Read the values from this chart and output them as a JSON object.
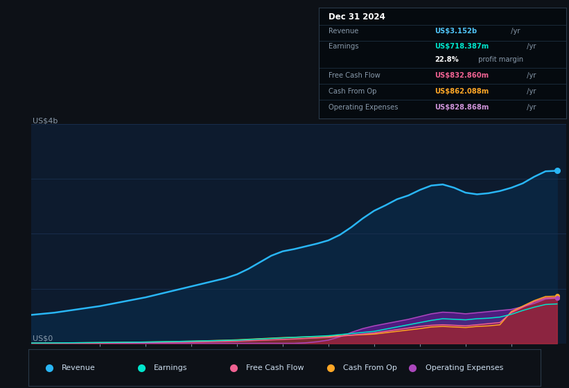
{
  "bg_color": "#0d1117",
  "plot_bg_color": "#0d1b2e",
  "grid_color": "#1a3050",
  "revenue_color": "#29b6f6",
  "earnings_color": "#00e5cc",
  "fcf_color": "#f06292",
  "cashop_color": "#ffa726",
  "opex_color": "#ab47bc",
  "legend_items": [
    {
      "label": "Revenue",
      "color": "#29b6f6"
    },
    {
      "label": "Earnings",
      "color": "#00e5cc"
    },
    {
      "label": "Free Cash Flow",
      "color": "#f06292"
    },
    {
      "label": "Cash From Op",
      "color": "#ffa726"
    },
    {
      "label": "Operating Expenses",
      "color": "#ab47bc"
    }
  ],
  "years": [
    2013.5,
    2013.75,
    2014.0,
    2014.25,
    2014.5,
    2014.75,
    2015.0,
    2015.25,
    2015.5,
    2015.75,
    2016.0,
    2016.25,
    2016.5,
    2016.75,
    2017.0,
    2017.25,
    2017.5,
    2017.75,
    2018.0,
    2018.25,
    2018.5,
    2018.75,
    2019.0,
    2019.25,
    2019.5,
    2019.75,
    2020.0,
    2020.25,
    2020.5,
    2020.75,
    2021.0,
    2021.25,
    2021.5,
    2021.75,
    2022.0,
    2022.25,
    2022.5,
    2022.75,
    2023.0,
    2023.25,
    2023.5,
    2023.75,
    2024.0,
    2024.25,
    2024.5,
    2024.75,
    2025.0
  ],
  "revenue": [
    0.52,
    0.54,
    0.56,
    0.59,
    0.62,
    0.65,
    0.68,
    0.72,
    0.76,
    0.8,
    0.84,
    0.89,
    0.94,
    0.99,
    1.04,
    1.09,
    1.14,
    1.19,
    1.26,
    1.36,
    1.48,
    1.6,
    1.68,
    1.72,
    1.77,
    1.82,
    1.88,
    1.98,
    2.12,
    2.28,
    2.42,
    2.52,
    2.63,
    2.7,
    2.8,
    2.88,
    2.9,
    2.84,
    2.75,
    2.72,
    2.74,
    2.78,
    2.84,
    2.92,
    3.04,
    3.14,
    3.15
  ],
  "earnings": [
    0.005,
    0.006,
    0.008,
    0.01,
    0.012,
    0.014,
    0.016,
    0.018,
    0.02,
    0.022,
    0.024,
    0.028,
    0.032,
    0.036,
    0.04,
    0.045,
    0.05,
    0.055,
    0.06,
    0.07,
    0.08,
    0.09,
    0.1,
    0.11,
    0.12,
    0.13,
    0.14,
    0.16,
    0.18,
    0.2,
    0.22,
    0.26,
    0.3,
    0.34,
    0.38,
    0.42,
    0.45,
    0.44,
    0.43,
    0.45,
    0.46,
    0.48,
    0.53,
    0.6,
    0.66,
    0.71,
    0.72
  ],
  "fcf": [
    0.002,
    0.003,
    0.004,
    0.005,
    0.006,
    0.007,
    0.008,
    0.01,
    0.012,
    0.014,
    0.016,
    0.018,
    0.02,
    0.022,
    0.025,
    0.028,
    0.032,
    0.036,
    0.04,
    0.048,
    0.056,
    0.064,
    0.072,
    0.08,
    0.09,
    0.1,
    0.11,
    0.13,
    0.15,
    0.17,
    0.19,
    0.22,
    0.25,
    0.28,
    0.31,
    0.33,
    0.34,
    0.33,
    0.32,
    0.34,
    0.36,
    0.38,
    0.56,
    0.66,
    0.76,
    0.83,
    0.833
  ],
  "cashop": [
    0.004,
    0.005,
    0.007,
    0.009,
    0.011,
    0.013,
    0.015,
    0.017,
    0.019,
    0.022,
    0.025,
    0.028,
    0.032,
    0.036,
    0.04,
    0.046,
    0.052,
    0.058,
    0.065,
    0.075,
    0.085,
    0.095,
    0.105,
    0.112,
    0.118,
    0.124,
    0.13,
    0.14,
    0.15,
    0.16,
    0.17,
    0.195,
    0.22,
    0.245,
    0.27,
    0.3,
    0.31,
    0.3,
    0.29,
    0.31,
    0.32,
    0.34,
    0.58,
    0.68,
    0.78,
    0.855,
    0.862
  ],
  "opex": [
    0.001,
    0.001,
    0.001,
    0.001,
    0.001,
    0.001,
    0.001,
    0.001,
    0.001,
    0.001,
    0.001,
    0.001,
    0.001,
    0.001,
    0.001,
    0.001,
    0.001,
    0.001,
    0.001,
    0.001,
    0.001,
    0.001,
    0.001,
    0.001,
    0.01,
    0.03,
    0.06,
    0.12,
    0.2,
    0.27,
    0.32,
    0.36,
    0.4,
    0.44,
    0.49,
    0.54,
    0.57,
    0.56,
    0.54,
    0.56,
    0.58,
    0.6,
    0.62,
    0.67,
    0.73,
    0.81,
    0.829
  ]
}
